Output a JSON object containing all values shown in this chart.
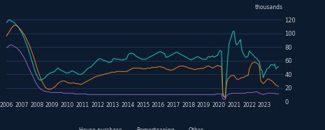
{
  "bg_color": "#0d1b2e",
  "grid_color": "#263d5e",
  "text_color": "#c8cdd4",
  "line_colors": {
    "house_purchase": "#00c8b4",
    "remortgaging": "#e07820",
    "other": "#8060c0"
  },
  "ylabel": "thousands",
  "yticks": [
    0,
    20,
    40,
    60,
    80,
    100,
    120
  ],
  "ylim": [
    0,
    130
  ],
  "xlim": [
    2006.0,
    2024.2
  ],
  "xtick_years": [
    2006,
    2007,
    2008,
    2009,
    2010,
    2011,
    2012,
    2013,
    2014,
    2015,
    2016,
    2017,
    2018,
    2019,
    2020,
    2021,
    2022,
    2023
  ],
  "house_purchase": [
    116,
    118,
    120,
    119,
    118,
    117,
    116,
    114,
    112,
    110,
    107,
    104,
    101,
    97,
    93,
    88,
    83,
    78,
    72,
    66,
    60,
    54,
    48,
    42,
    38,
    34,
    32,
    31,
    32,
    33,
    34,
    36,
    38,
    40,
    41,
    42,
    43,
    43,
    44,
    46,
    48,
    49,
    47,
    46,
    45,
    44,
    43,
    42,
    42,
    42,
    43,
    44,
    45,
    44,
    43,
    42,
    41,
    40,
    40,
    40,
    41,
    42,
    44,
    46,
    48,
    49,
    50,
    51,
    53,
    55,
    57,
    59,
    61,
    62,
    63,
    62,
    61,
    60,
    60,
    59,
    58,
    57,
    58,
    58,
    62,
    63,
    63,
    62,
    62,
    62,
    61,
    61,
    61,
    62,
    62,
    63,
    68,
    70,
    71,
    71,
    70,
    69,
    67,
    66,
    65,
    64,
    63,
    62,
    62,
    62,
    62,
    63,
    64,
    65,
    66,
    67,
    68,
    69,
    70,
    71,
    72,
    73,
    73,
    72,
    71,
    70,
    65,
    65,
    66,
    67,
    68,
    69,
    70,
    71,
    72,
    72,
    71,
    70,
    69,
    68,
    67,
    66,
    65,
    64,
    63,
    62,
    61,
    62,
    63,
    64,
    65,
    66,
    65,
    64,
    63,
    62,
    62,
    62,
    62,
    65,
    66,
    65,
    66,
    67,
    65,
    66,
    67,
    68,
    73,
    75,
    73,
    12,
    8,
    5,
    38,
    66,
    85,
    91,
    97,
    103,
    103,
    87,
    83,
    85,
    88,
    91,
    76,
    71,
    68,
    65,
    65,
    67,
    74,
    72,
    70,
    68,
    66,
    64,
    63,
    60,
    58,
    47,
    46,
    35,
    40,
    44,
    48,
    49,
    51,
    54,
    54,
    53,
    55,
    48,
    50,
    51
  ],
  "remortgaging": [
    96,
    99,
    102,
    105,
    108,
    110,
    112,
    112,
    111,
    110,
    108,
    106,
    104,
    101,
    98,
    95,
    91,
    87,
    83,
    78,
    73,
    68,
    62,
    56,
    50,
    44,
    39,
    34,
    30,
    26,
    23,
    20,
    19,
    18,
    18,
    18,
    19,
    20,
    21,
    23,
    25,
    27,
    28,
    29,
    30,
    30,
    30,
    29,
    28,
    27,
    27,
    27,
    27,
    27,
    27,
    26,
    26,
    26,
    25,
    25,
    26,
    27,
    28,
    29,
    30,
    31,
    32,
    33,
    34,
    35,
    36,
    37,
    37,
    38,
    38,
    39,
    39,
    40,
    40,
    41,
    41,
    42,
    42,
    43,
    43,
    43,
    43,
    44,
    44,
    44,
    44,
    44,
    44,
    44,
    44,
    44,
    45,
    46,
    47,
    48,
    49,
    49,
    49,
    49,
    49,
    49,
    49,
    48,
    48,
    48,
    48,
    49,
    49,
    49,
    49,
    50,
    50,
    50,
    50,
    50,
    51,
    51,
    51,
    50,
    50,
    49,
    48,
    47,
    47,
    46,
    46,
    46,
    47,
    48,
    49,
    50,
    51,
    52,
    52,
    52,
    52,
    51,
    51,
    50,
    49,
    49,
    48,
    48,
    47,
    47,
    47,
    48,
    48,
    48,
    49,
    48,
    49,
    50,
    51,
    52,
    52,
    51,
    50,
    49,
    50,
    51,
    52,
    53,
    52,
    52,
    51,
    9,
    7,
    6,
    26,
    33,
    35,
    37,
    38,
    38,
    38,
    35,
    33,
    32,
    33,
    34,
    35,
    35,
    36,
    37,
    38,
    38,
    48,
    52,
    56,
    57,
    58,
    57,
    56,
    55,
    50,
    30,
    28,
    26,
    28,
    30,
    32,
    33,
    32,
    31,
    30,
    28,
    26,
    24,
    23,
    22
  ],
  "other": [
    79,
    80,
    82,
    83,
    83,
    82,
    81,
    80,
    79,
    77,
    75,
    73,
    70,
    67,
    64,
    60,
    56,
    52,
    48,
    44,
    40,
    36,
    32,
    28,
    25,
    22,
    20,
    18,
    17,
    16,
    15,
    15,
    14,
    14,
    14,
    13,
    13,
    13,
    13,
    13,
    13,
    13,
    13,
    13,
    13,
    12,
    12,
    12,
    12,
    12,
    12,
    12,
    12,
    12,
    11,
    11,
    11,
    11,
    11,
    11,
    11,
    11,
    11,
    11,
    10,
    10,
    10,
    10,
    10,
    10,
    10,
    10,
    10,
    10,
    10,
    10,
    10,
    10,
    10,
    10,
    10,
    10,
    10,
    10,
    10,
    10,
    10,
    10,
    10,
    10,
    10,
    10,
    10,
    10,
    10,
    10,
    10,
    10,
    10,
    10,
    10,
    10,
    10,
    10,
    10,
    10,
    10,
    10,
    10,
    10,
    10,
    10,
    10,
    10,
    10,
    10,
    10,
    10,
    10,
    10,
    10,
    10,
    10,
    10,
    10,
    10,
    10,
    10,
    10,
    10,
    10,
    10,
    10,
    10,
    10,
    10,
    10,
    10,
    10,
    10,
    10,
    10,
    10,
    10,
    10,
    10,
    10,
    10,
    10,
    10,
    10,
    10,
    10,
    10,
    10,
    10,
    10,
    10,
    10,
    10,
    10,
    10,
    10,
    10,
    10,
    10,
    11,
    11,
    11,
    11,
    11,
    4,
    3,
    3,
    8,
    10,
    11,
    11,
    12,
    12,
    12,
    12,
    12,
    12,
    12,
    12,
    12,
    12,
    12,
    12,
    13,
    13,
    13,
    13,
    13,
    13,
    14,
    14,
    14,
    13,
    12,
    11,
    11,
    10,
    11,
    11,
    12,
    12,
    12,
    12,
    12,
    12,
    12,
    11,
    11,
    11
  ]
}
